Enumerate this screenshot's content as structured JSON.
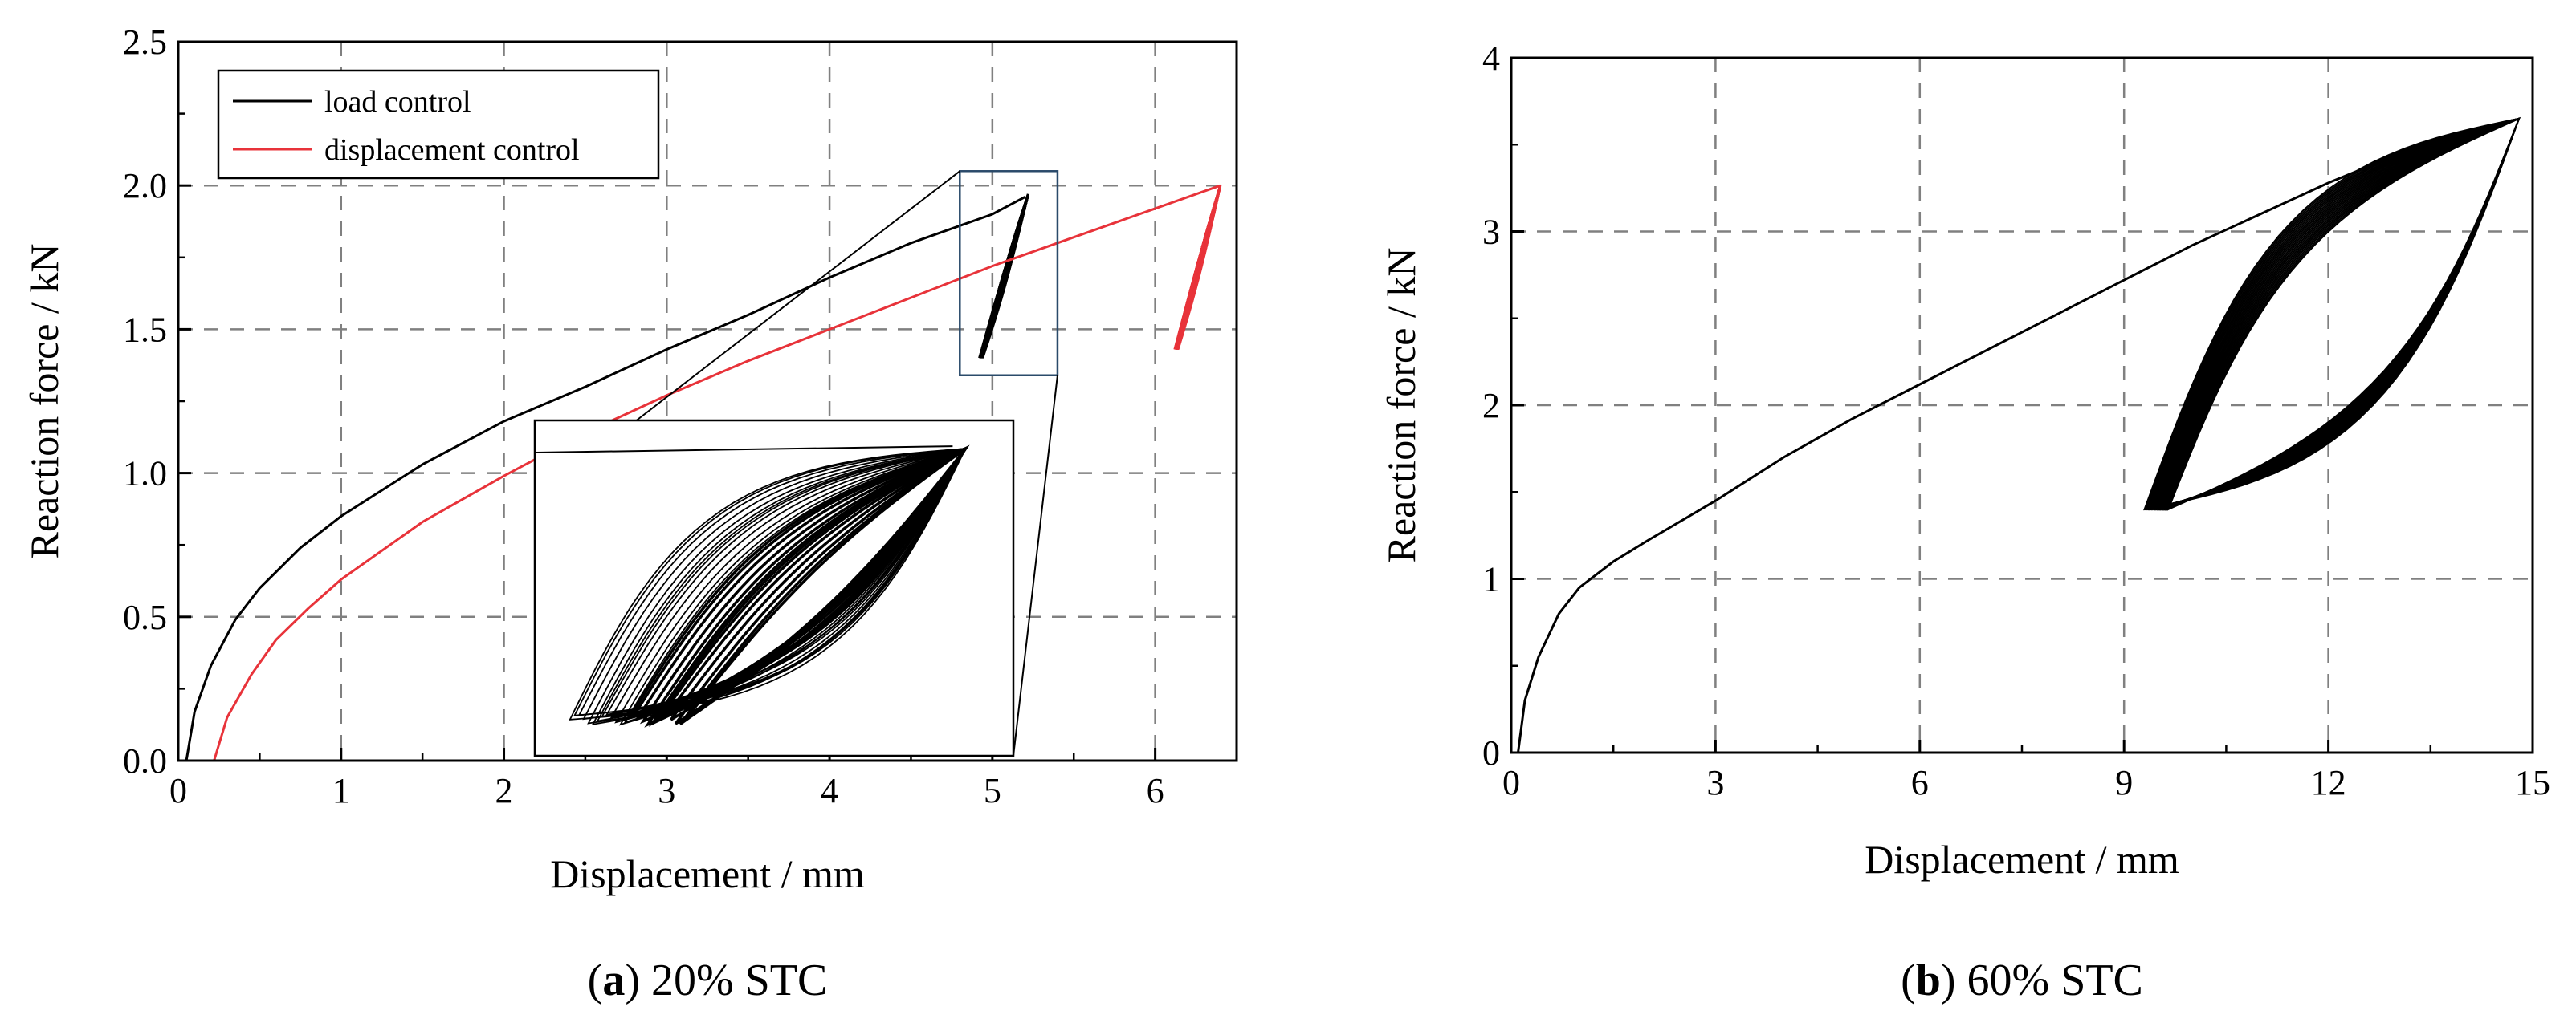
{
  "chart_data": [
    {
      "type": "line",
      "panel": "a",
      "caption_letter": "a",
      "caption_text": "20% STC",
      "xlabel": "Displacement / mm",
      "ylabel": "Reaction force / kN",
      "xlim": [
        0,
        6.5
      ],
      "ylim": [
        0,
        2.5
      ],
      "xticks": [
        "0",
        "1",
        "2",
        "3",
        "4",
        "5",
        "6"
      ],
      "yticks": [
        "0.0",
        "0.5",
        "1.0",
        "1.5",
        "2.0",
        "2.5"
      ],
      "grid": true,
      "legend_position": "top-left",
      "series": [
        {
          "name": "load control",
          "color": "#000000",
          "x": [
            0.05,
            0.1,
            0.2,
            0.35,
            0.5,
            0.75,
            1.0,
            1.5,
            2.0,
            2.5,
            3.0,
            3.5,
            4.0,
            4.5,
            5.0,
            5.2
          ],
          "y": [
            0.0,
            0.17,
            0.33,
            0.49,
            0.6,
            0.74,
            0.85,
            1.03,
            1.18,
            1.3,
            1.43,
            1.55,
            1.68,
            1.8,
            1.9,
            1.96
          ],
          "loops": {
            "x_range": [
              4.92,
              5.22
            ],
            "y_range": [
              1.4,
              1.97
            ]
          }
        },
        {
          "name": "displacement control",
          "color": "#e8333a",
          "x": [
            0.22,
            0.3,
            0.45,
            0.6,
            0.8,
            1.0,
            1.5,
            2.0,
            2.5,
            3.0,
            3.5,
            4.0,
            4.5,
            5.0,
            5.5,
            6.0,
            6.4
          ],
          "y": [
            0.0,
            0.15,
            0.3,
            0.42,
            0.53,
            0.63,
            0.83,
            0.99,
            1.14,
            1.27,
            1.39,
            1.5,
            1.61,
            1.72,
            1.82,
            1.92,
            2.0
          ],
          "loops": {
            "x_range": [
              6.12,
              6.4
            ],
            "y_range": [
              1.43,
              2.0
            ]
          }
        }
      ]
    },
    {
      "type": "line",
      "panel": "b",
      "caption_letter": "b",
      "caption_text": "60% STC",
      "xlabel": "Displacement / mm",
      "ylabel": "Reaction force / kN",
      "xlim": [
        0,
        15
      ],
      "ylim": [
        0,
        4
      ],
      "xticks": [
        "0",
        "3",
        "6",
        "9",
        "12",
        "15"
      ],
      "yticks": [
        "0",
        "1",
        "2",
        "3",
        "4"
      ],
      "grid": true,
      "series": [
        {
          "color": "#000000",
          "x": [
            0.1,
            0.2,
            0.4,
            0.7,
            1.0,
            1.5,
            2.0,
            3.0,
            4.0,
            5.0,
            6.0,
            7.0,
            8.0,
            9.0,
            10.0,
            11.0,
            12.0,
            13.0,
            14.0,
            14.7
          ],
          "y": [
            0.0,
            0.3,
            0.55,
            0.8,
            0.95,
            1.1,
            1.22,
            1.45,
            1.7,
            1.92,
            2.12,
            2.32,
            2.52,
            2.72,
            2.92,
            3.1,
            3.28,
            3.44,
            3.57,
            3.64
          ],
          "loops": {
            "x_range": [
              9.3,
              14.8
            ],
            "y_range": [
              1.4,
              3.65
            ]
          }
        }
      ]
    }
  ]
}
